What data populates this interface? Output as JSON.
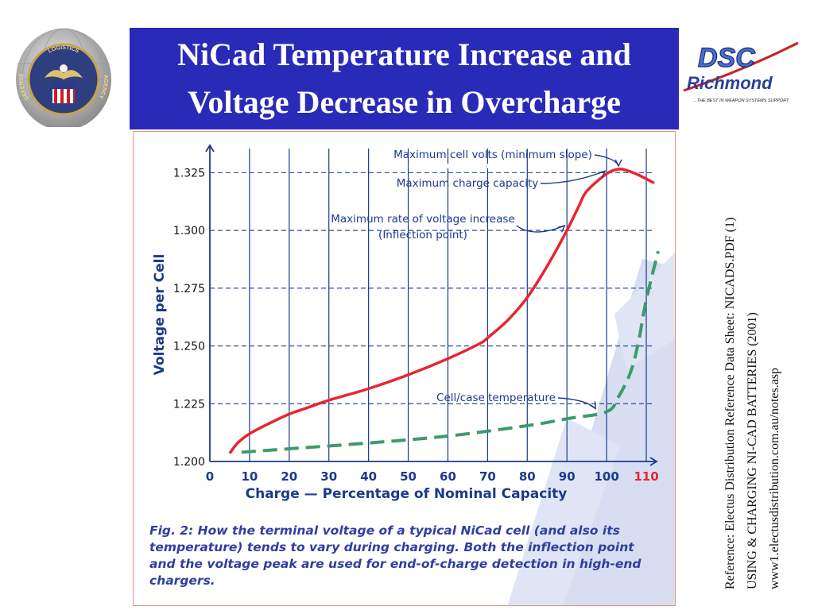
{
  "header": {
    "title_line1": "NiCad Temperature Increase and",
    "title_line2": "Voltage Decrease in Overcharge"
  },
  "logos": {
    "seal_top_text": "LOGISTICS",
    "seal_left_text": "DEFENSE",
    "seal_right_text": "AGENCY",
    "dsc_text": "DSC",
    "richmond_text": "Richmond",
    "dsc_tagline": "...THE BEST IN WEAPON SYSTEMS SUPPORT"
  },
  "reference": {
    "line1": "Reference:  Electus Distribution Reference Data Sheet: NICADS.PDF (1)",
    "line2": "USING & CHARGING NI-CAD BATTERIES (2001)",
    "line3": "www1.electusdistribution.com.au/notes.asp"
  },
  "colors": {
    "title_bg": "#2a2ab8",
    "chart_blue": "#1a3a8c",
    "voltage_red": "#e8252f",
    "temperature_green": "#3d9a6a",
    "caption_blue": "#2e3fa0",
    "watermark": "#b8c4e6",
    "highlight_tick": "#e8252f"
  },
  "chart_data": {
    "type": "line",
    "title": "",
    "xlabel": "Charge — Percentage of Nominal Capacity",
    "ylabel": "Voltage per Cell",
    "xlim": [
      0,
      113
    ],
    "ylim": [
      1.2,
      1.3375
    ],
    "x_ticks": [
      0,
      10,
      20,
      30,
      40,
      50,
      60,
      70,
      80,
      90,
      100,
      110
    ],
    "x_tick_labels": [
      "0",
      "10",
      "20",
      "30",
      "40",
      "50",
      "60",
      "70",
      "80",
      "90",
      "100",
      "110"
    ],
    "highlighted_x_tick": "110",
    "y_ticks": [
      1.2,
      1.225,
      1.25,
      1.275,
      1.3,
      1.325
    ],
    "y_tick_labels": [
      "1.200",
      "1.225",
      "1.250",
      "1.275",
      "1.300",
      "1.325"
    ],
    "grid": true,
    "series": [
      {
        "name": "Voltage per cell",
        "style": "solid",
        "x": [
          5,
          7,
          10,
          15,
          20,
          25,
          30,
          40,
          50,
          60,
          68,
          70,
          75,
          80,
          85,
          90,
          93,
          95,
          100,
          103,
          105,
          108,
          112
        ],
        "y": [
          1.2035,
          1.208,
          1.212,
          1.2165,
          1.2205,
          1.2235,
          1.2265,
          1.2315,
          1.2375,
          1.2445,
          1.251,
          1.2535,
          1.261,
          1.271,
          1.2845,
          1.3,
          1.3105,
          1.317,
          1.3245,
          1.3265,
          1.326,
          1.324,
          1.3205
        ]
      },
      {
        "name": "Cell/case temperature",
        "style": "dashed",
        "x": [
          8,
          20,
          40,
          60,
          80,
          90,
          100,
          103,
          106,
          108,
          110,
          113
        ],
        "y": [
          1.204,
          1.2055,
          1.208,
          1.211,
          1.2155,
          1.2185,
          1.2215,
          1.228,
          1.2385,
          1.2515,
          1.27,
          1.291
        ]
      }
    ],
    "annotations": [
      {
        "text": "Maximum cell volts (minimum slope)",
        "target_x": 103,
        "target_y": 1.3265
      },
      {
        "text": "Maximum charge capacity",
        "target_x": 100,
        "target_y": 1.325
      },
      {
        "text": "Maximum rate of voltage increase",
        "text2": "(Inflection point)",
        "target_x": 90,
        "target_y": 1.3
      },
      {
        "text": "Cell/case temperature",
        "target_x": 98,
        "target_y": 1.2215
      }
    ],
    "caption": "Fig. 2: How the terminal voltage of a typical NiCad cell (and also its temperature) tends to vary during charging. Both the inflection point and the voltage peak are used for end-of-charge detection in high-end chargers."
  }
}
